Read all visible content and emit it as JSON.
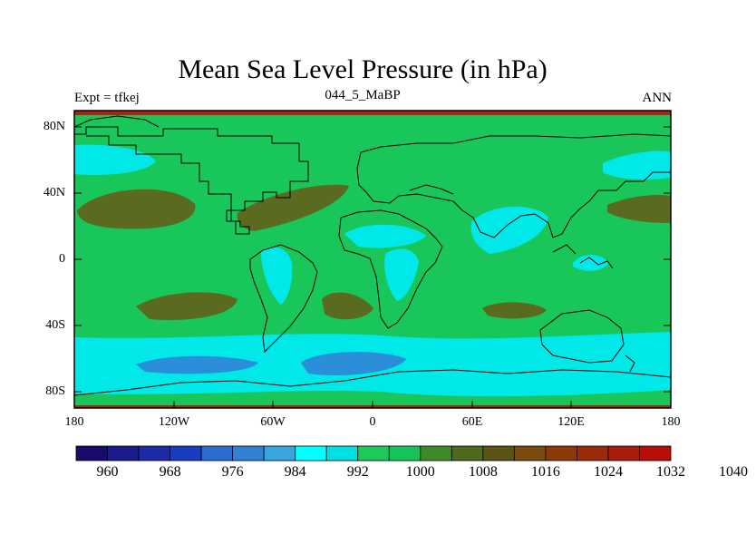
{
  "header": {
    "title": "Mean Sea Level Pressure (in hPa)",
    "left": "Expt = tfkej",
    "center": "044_5_MaBP",
    "right": "ANN"
  },
  "axes": {
    "lat_ticks": [
      "80N",
      "40N",
      "0",
      "40S",
      "80S"
    ],
    "lon_ticks": [
      "180",
      "120W",
      "60W",
      "0",
      "60E",
      "120E",
      "180"
    ]
  },
  "colorbar": {
    "colors": [
      "#1a0a6b",
      "#1c1a8c",
      "#1c2aa6",
      "#1a3cbf",
      "#2a6ccf",
      "#2f82d6",
      "#37a6e0",
      "#00ffff",
      "#00e0e0",
      "#1ec85a",
      "#16c35a",
      "#3f8a2a",
      "#4f6a1c",
      "#5c5414",
      "#7a4a10",
      "#8b3a0c",
      "#9a2a0a",
      "#a81c0a",
      "#b80e0a"
    ],
    "labels": [
      "960",
      "968",
      "976",
      "984",
      "992",
      "1000",
      "1008",
      "1016",
      "1024",
      "1032",
      "1040"
    ]
  },
  "legend_colors": {
    "ocean_base": "#19c65a",
    "high": "#5a6a1e",
    "low_light": "#00e8e8",
    "low_deep": "#2a8fd8",
    "cap": "#a8280f"
  }
}
